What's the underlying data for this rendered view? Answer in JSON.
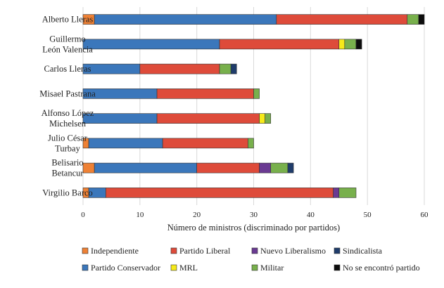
{
  "chart_data": {
    "type": "bar",
    "orientation": "horizontal",
    "stacked": true,
    "categories": [
      [
        "Alberto Lleras"
      ],
      [
        "Guillermo",
        "León Valencia"
      ],
      [
        "Carlos Lleras"
      ],
      [
        "Misael Pastrana"
      ],
      [
        "Alfonso López",
        "Michelsen"
      ],
      [
        "Julio César",
        "Turbay"
      ],
      [
        "Belisario",
        "Betancur"
      ],
      [
        "Virgilio Barco"
      ]
    ],
    "series": [
      {
        "name": "Independiente",
        "color": "#ee8135",
        "values": [
          2,
          0,
          0,
          0,
          0,
          1,
          2,
          1
        ]
      },
      {
        "name": "Partido Conservador",
        "color": "#3b77bb",
        "values": [
          32,
          24,
          10,
          13,
          13,
          13,
          18,
          3
        ]
      },
      {
        "name": "Partido Liberal",
        "color": "#de4b3a",
        "values": [
          23,
          21,
          14,
          17,
          18,
          15,
          11,
          40
        ]
      },
      {
        "name": "Nuevo Liberalismo",
        "color": "#6a3a92",
        "values": [
          0,
          0,
          0,
          0,
          0,
          0,
          2,
          1
        ]
      },
      {
        "name": "MRL",
        "color": "#f6ea1a",
        "values": [
          0,
          1,
          0,
          0,
          1,
          0,
          0,
          0
        ]
      },
      {
        "name": "Militar",
        "color": "#78b04c",
        "values": [
          2,
          2,
          2,
          1,
          1,
          1,
          3,
          3
        ]
      },
      {
        "name": "Sindicalista",
        "color": "#1f3c6b",
        "values": [
          0,
          0,
          1,
          0,
          0,
          0,
          1,
          0
        ]
      },
      {
        "name": "No se encontró partido",
        "color": "#0d0d0d",
        "values": [
          1,
          1,
          0,
          0,
          0,
          0,
          0,
          0
        ]
      }
    ],
    "legend_order": [
      "Independiente",
      "Partido Liberal",
      "Nuevo Liberalismo",
      "Sindicalista",
      "Partido Conservador",
      "MRL",
      "Militar",
      "No se encontró partido"
    ],
    "xlabel": "Número de ministros (discriminado por partidos)",
    "ylabel": "",
    "title": "",
    "xlim": [
      0,
      60
    ],
    "xticks": [
      0,
      10,
      20,
      30,
      40,
      50,
      60
    ],
    "grid": "vertical",
    "legend_position": "bottom"
  }
}
